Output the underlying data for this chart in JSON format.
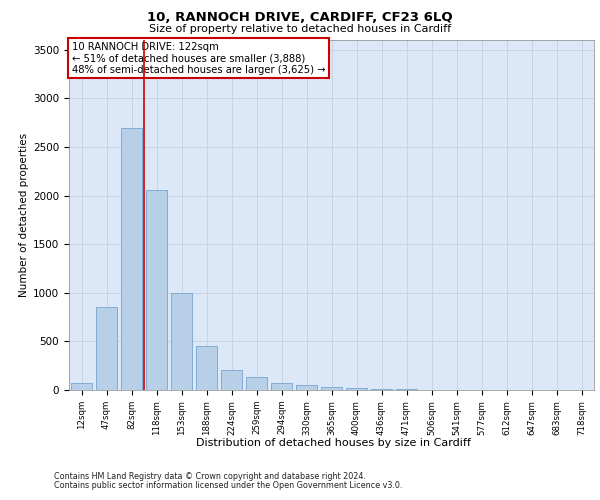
{
  "title1": "10, RANNOCH DRIVE, CARDIFF, CF23 6LQ",
  "title2": "Size of property relative to detached houses in Cardiff",
  "xlabel": "Distribution of detached houses by size in Cardiff",
  "ylabel": "Number of detached properties",
  "categories": [
    "12sqm",
    "47sqm",
    "82sqm",
    "118sqm",
    "153sqm",
    "188sqm",
    "224sqm",
    "259sqm",
    "294sqm",
    "330sqm",
    "365sqm",
    "400sqm",
    "436sqm",
    "471sqm",
    "506sqm",
    "541sqm",
    "577sqm",
    "612sqm",
    "647sqm",
    "683sqm",
    "718sqm"
  ],
  "values": [
    75,
    850,
    2700,
    2060,
    1000,
    450,
    210,
    130,
    75,
    55,
    35,
    25,
    15,
    8,
    5,
    3,
    2,
    2,
    1,
    1,
    1
  ],
  "bar_color": "#b8cfe8",
  "bar_edge_color": "#6699cc",
  "bar_linewidth": 0.5,
  "vline_x": 2.5,
  "vline_color": "#cc0000",
  "vline_linewidth": 1.2,
  "annotation_lines": [
    "10 RANNOCH DRIVE: 122sqm",
    "← 51% of detached houses are smaller (3,888)",
    "48% of semi-detached houses are larger (3,625) →"
  ],
  "annotation_box_color": "#ffffff",
  "annotation_box_edge": "#cc0000",
  "ylim": [
    0,
    3600
  ],
  "yticks": [
    0,
    500,
    1000,
    1500,
    2000,
    2500,
    3000,
    3500
  ],
  "grid_color": "#c8d4e4",
  "background_color": "#dce8f8",
  "footer1": "Contains HM Land Registry data © Crown copyright and database right 2024.",
  "footer2": "Contains public sector information licensed under the Open Government Licence v3.0."
}
